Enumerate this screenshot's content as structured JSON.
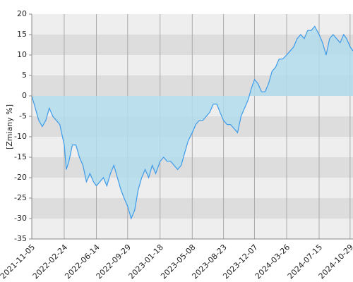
{
  "chart_data": {
    "type": "area",
    "y_label": "[Zmiany %]",
    "color": "#3d9be9",
    "fill_color": "#b3dced",
    "band_colors": [
      "#eeeeee",
      "#dddddd"
    ],
    "grid": true,
    "ylim": [
      -35,
      20
    ],
    "yticks": [
      -35,
      -30,
      -25,
      -20,
      -15,
      -10,
      -5,
      0,
      5,
      10,
      15,
      20
    ],
    "xlim": [
      "2021-11-05",
      "2024-11-08"
    ],
    "xticks": [
      "2021-11-05",
      "2022-02-24",
      "2022-06-14",
      "2022-09-29",
      "2023-01-18",
      "2023-05-08",
      "2023-08-23",
      "2023-12-07",
      "2024-03-26",
      "2024-07-15",
      "2024-10-29"
    ],
    "x": [
      "2021-11-05",
      "2021-11-17",
      "2021-11-29",
      "2021-12-11",
      "2021-12-23",
      "2022-01-04",
      "2022-01-16",
      "2022-01-28",
      "2022-02-09",
      "2022-02-24",
      "2022-03-03",
      "2022-03-12",
      "2022-03-24",
      "2022-04-05",
      "2022-04-17",
      "2022-04-29",
      "2022-05-11",
      "2022-05-23",
      "2022-06-04",
      "2022-06-14",
      "2022-06-26",
      "2022-07-08",
      "2022-07-20",
      "2022-08-01",
      "2022-08-13",
      "2022-08-25",
      "2022-09-06",
      "2022-09-17",
      "2022-09-29",
      "2022-10-11",
      "2022-10-23",
      "2022-11-04",
      "2022-11-16",
      "2022-11-28",
      "2022-12-10",
      "2022-12-22",
      "2023-01-03",
      "2023-01-18",
      "2023-01-30",
      "2023-02-11",
      "2023-02-23",
      "2023-03-07",
      "2023-03-19",
      "2023-03-31",
      "2023-04-12",
      "2023-04-24",
      "2023-05-08",
      "2023-05-20",
      "2023-06-01",
      "2023-06-13",
      "2023-06-25",
      "2023-07-07",
      "2023-07-19",
      "2023-07-31",
      "2023-08-11",
      "2023-08-23",
      "2023-09-04",
      "2023-09-16",
      "2023-09-28",
      "2023-10-10",
      "2023-10-22",
      "2023-11-03",
      "2023-11-15",
      "2023-11-27",
      "2023-12-07",
      "2023-12-19",
      "2023-12-31",
      "2024-01-12",
      "2024-01-24",
      "2024-02-05",
      "2024-02-17",
      "2024-02-29",
      "2024-03-12",
      "2024-03-26",
      "2024-04-07",
      "2024-04-19",
      "2024-05-01",
      "2024-05-13",
      "2024-05-25",
      "2024-06-06",
      "2024-06-18",
      "2024-06-30",
      "2024-07-15",
      "2024-07-27",
      "2024-08-08",
      "2024-08-20",
      "2024-09-01",
      "2024-09-13",
      "2024-09-25",
      "2024-10-07",
      "2024-10-17",
      "2024-10-29",
      "2024-11-08"
    ],
    "values": [
      0,
      -3,
      -6,
      -7.5,
      -6,
      -3,
      -5,
      -6,
      -7,
      -12,
      -18,
      -16,
      -12,
      -12,
      -15,
      -17,
      -21,
      -19,
      -21,
      -22,
      -21,
      -20,
      -22,
      -19,
      -17,
      -20,
      -23,
      -25,
      -27,
      -30,
      -28,
      -23,
      -20,
      -18,
      -20,
      -17,
      -19,
      -16,
      -15,
      -16,
      -16,
      -17,
      -18,
      -17,
      -14,
      -11,
      -9,
      -7,
      -6,
      -6,
      -5,
      -4,
      -2,
      -2,
      -4,
      -6,
      -7,
      -7,
      -8,
      -9,
      -5,
      -3,
      -1,
      2,
      4,
      3,
      1,
      1,
      3,
      6,
      7,
      9,
      9,
      10,
      11,
      12,
      14,
      15,
      14,
      16,
      16,
      17,
      15,
      13,
      10,
      14,
      15,
      14,
      13,
      15,
      14,
      12,
      11
    ]
  }
}
